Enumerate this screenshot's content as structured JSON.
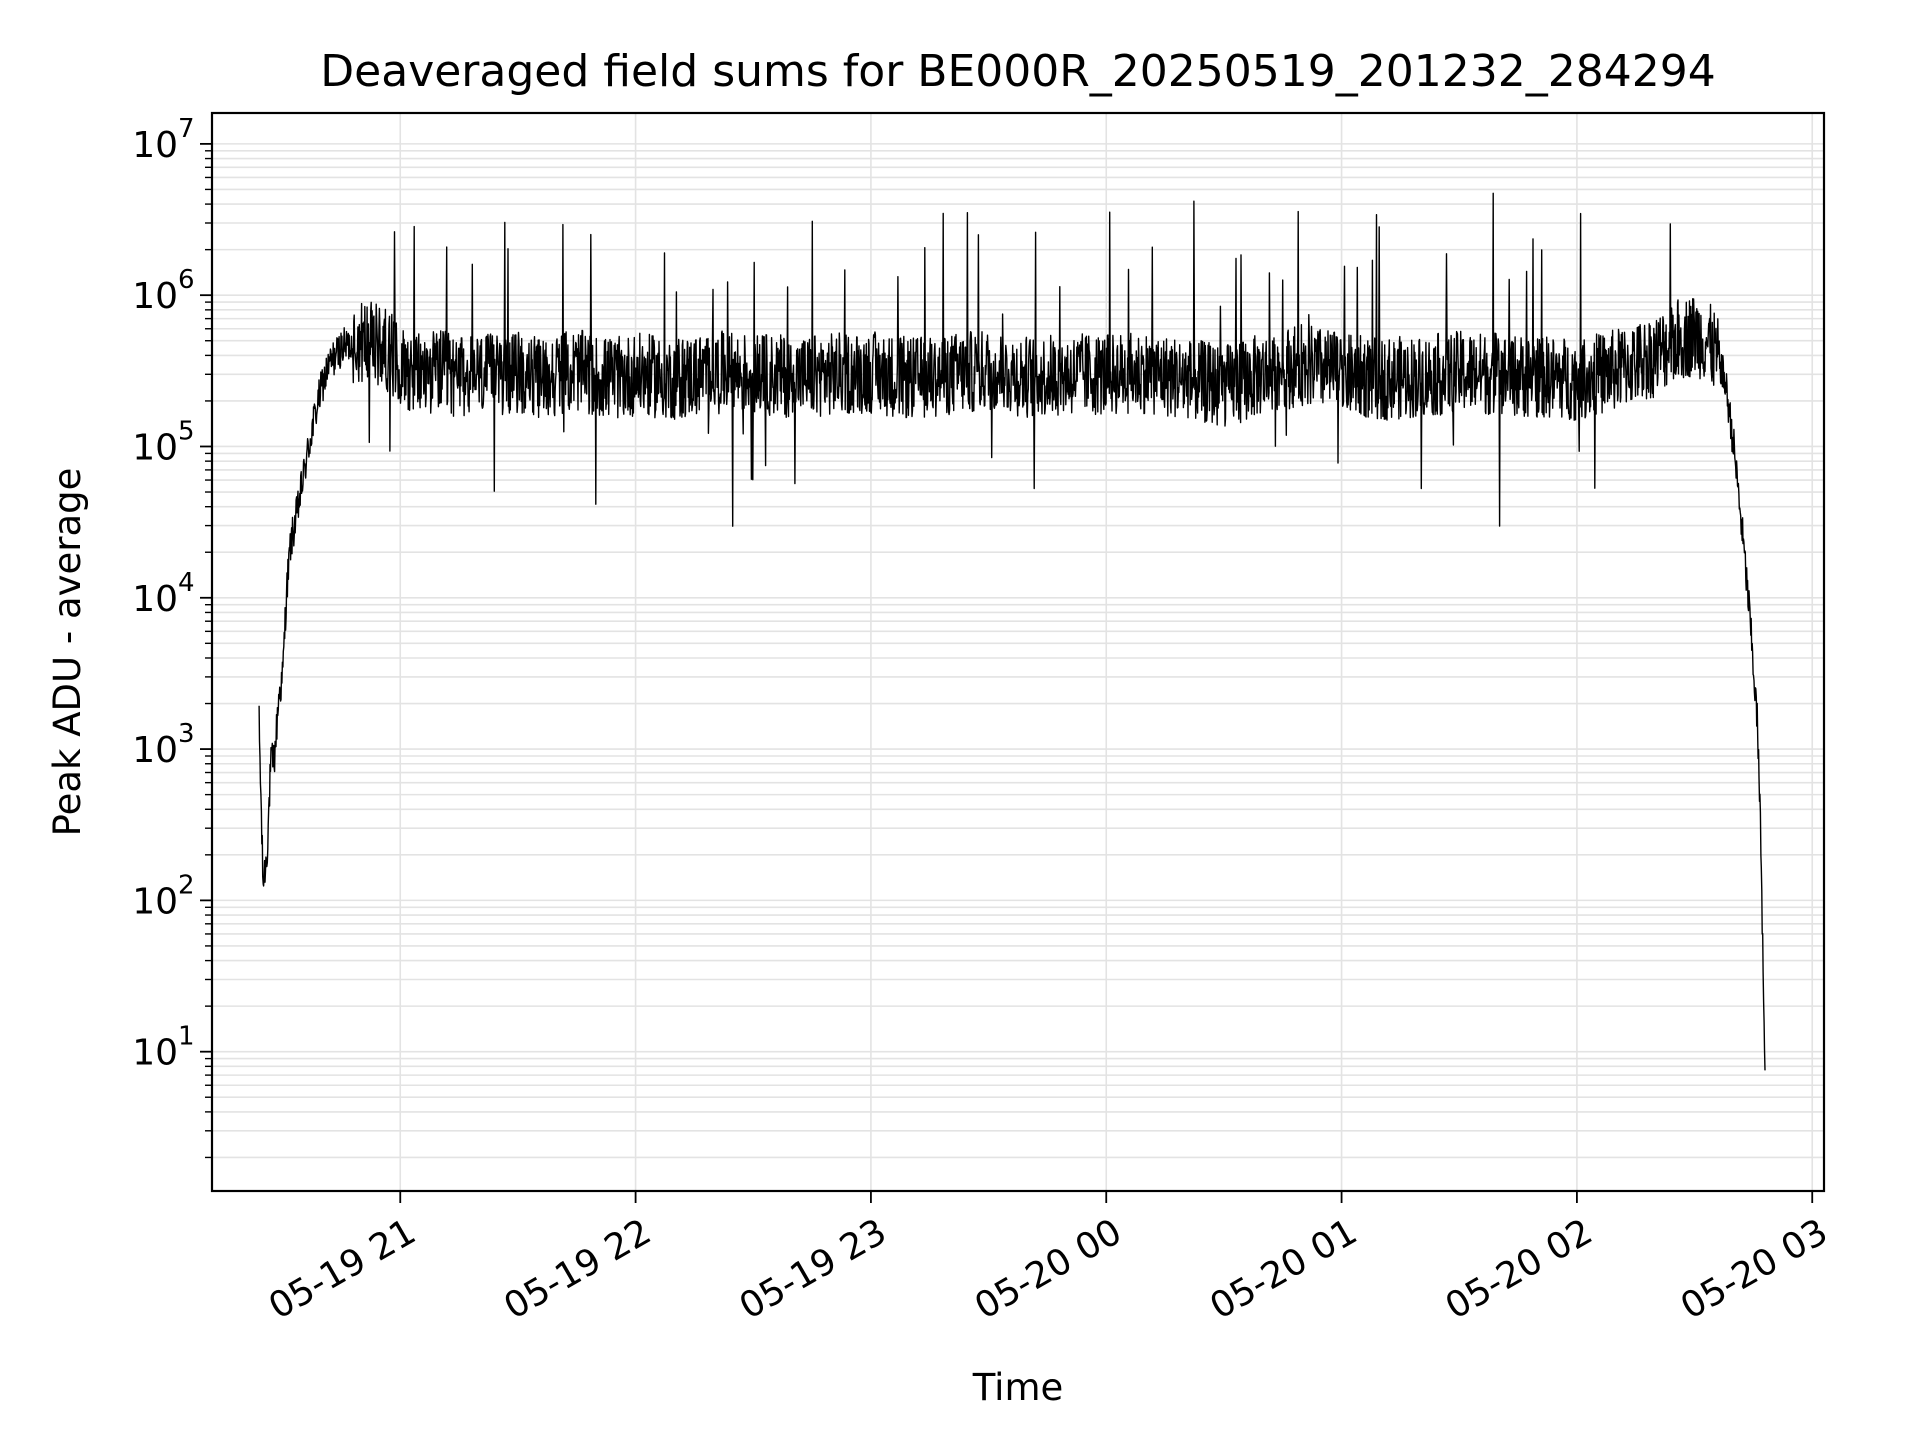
{
  "chart_data": {
    "type": "line",
    "title": "Deaveraged field sums for BE000R_20250519_201232_284294",
    "xlabel": "Time",
    "ylabel": "Peak ADU - average",
    "yscale": "log",
    "grid": true,
    "line_color": "#000000",
    "grid_color": "#e3e3e3",
    "xlim": [
      "2025-05-19 20:12",
      "2025-05-20 03:03"
    ],
    "ylim": [
      1.2,
      16000000
    ],
    "x_ticks": [
      {
        "value": "2025-05-19 21:00",
        "label": "05-19 21"
      },
      {
        "value": "2025-05-19 22:00",
        "label": "05-19 22"
      },
      {
        "value": "2025-05-19 23:00",
        "label": "05-19 23"
      },
      {
        "value": "2025-05-20 00:00",
        "label": "05-20 00"
      },
      {
        "value": "2025-05-20 01:00",
        "label": "05-20 01"
      },
      {
        "value": "2025-05-20 02:00",
        "label": "05-20 02"
      },
      {
        "value": "2025-05-20 03:00",
        "label": "05-20 03"
      }
    ],
    "y_ticks": [
      {
        "value": 10,
        "base": "10",
        "exp": "1"
      },
      {
        "value": 100,
        "base": "10",
        "exp": "2"
      },
      {
        "value": 1000,
        "base": "10",
        "exp": "3"
      },
      {
        "value": 10000,
        "base": "10",
        "exp": "4"
      },
      {
        "value": 100000,
        "base": "10",
        "exp": "5"
      },
      {
        "value": 1000000,
        "base": "10",
        "exp": "6"
      },
      {
        "value": 10000000,
        "base": "10",
        "exp": "7"
      }
    ],
    "series": [
      {
        "x": [
          "2025-05-19 20:24",
          "2025-05-19 20:25",
          "2025-05-19 20:26",
          "2025-05-19 20:27",
          "2025-05-19 20:28",
          "2025-05-19 20:29",
          "2025-05-19 20:30",
          "2025-05-19 20:31",
          "2025-05-19 20:32",
          "2025-05-19 20:34",
          "2025-05-19 20:36",
          "2025-05-19 20:38",
          "2025-05-19 20:40",
          "2025-05-19 20:42",
          "2025-05-19 20:45",
          "2025-05-19 20:48",
          "2025-05-19 20:51",
          "2025-05-19 20:54",
          "2025-05-19 20:57",
          "2025-05-19 21:00",
          "2025-05-19 21:05",
          "2025-05-19 21:10",
          "2025-05-19 21:15",
          "2025-05-19 21:20",
          "2025-05-19 21:25",
          "2025-05-19 21:30",
          "2025-05-19 21:35",
          "2025-05-19 21:40",
          "2025-05-19 21:45",
          "2025-05-19 21:50",
          "2025-05-19 21:55",
          "2025-05-19 22:00",
          "2025-05-19 22:10",
          "2025-05-19 22:20",
          "2025-05-19 22:30",
          "2025-05-19 22:40",
          "2025-05-19 22:50",
          "2025-05-19 23:00",
          "2025-05-19 23:10",
          "2025-05-19 23:20",
          "2025-05-19 23:30",
          "2025-05-19 23:40",
          "2025-05-19 23:50",
          "2025-05-20 00:00",
          "2025-05-20 00:10",
          "2025-05-20 00:20",
          "2025-05-20 00:30",
          "2025-05-20 00:40",
          "2025-05-20 00:50",
          "2025-05-20 01:00",
          "2025-05-20 01:10",
          "2025-05-20 01:20",
          "2025-05-20 01:30",
          "2025-05-20 01:40",
          "2025-05-20 01:50",
          "2025-05-20 02:00",
          "2025-05-20 02:10",
          "2025-05-20 02:20",
          "2025-05-20 02:25",
          "2025-05-20 02:30",
          "2025-05-20 02:33",
          "2025-05-20 02:36",
          "2025-05-20 02:38",
          "2025-05-20 02:40",
          "2025-05-20 02:42",
          "2025-05-20 02:44",
          "2025-05-20 02:46",
          "2025-05-20 02:47",
          "2025-05-20 02:48"
        ],
        "y": [
          1500,
          130,
          200,
          800,
          900,
          2200,
          3000,
          11000,
          22000,
          40000,
          80000,
          150000,
          250000,
          350000,
          450000,
          480000,
          500000,
          470000,
          430000,
          350000,
          300000,
          320000,
          280000,
          300000,
          290000,
          310000,
          280000,
          300000,
          320000,
          290000,
          280000,
          300000,
          280000,
          310000,
          300000,
          290000,
          300000,
          310000,
          280000,
          300000,
          320000,
          290000,
          300000,
          300000,
          310000,
          280000,
          250000,
          300000,
          350000,
          300000,
          280000,
          290000,
          310000,
          300000,
          290000,
          280000,
          320000,
          400000,
          500000,
          550000,
          500000,
          400000,
          250000,
          100000,
          30000,
          8000,
          1500,
          200,
          5
        ]
      }
    ]
  }
}
